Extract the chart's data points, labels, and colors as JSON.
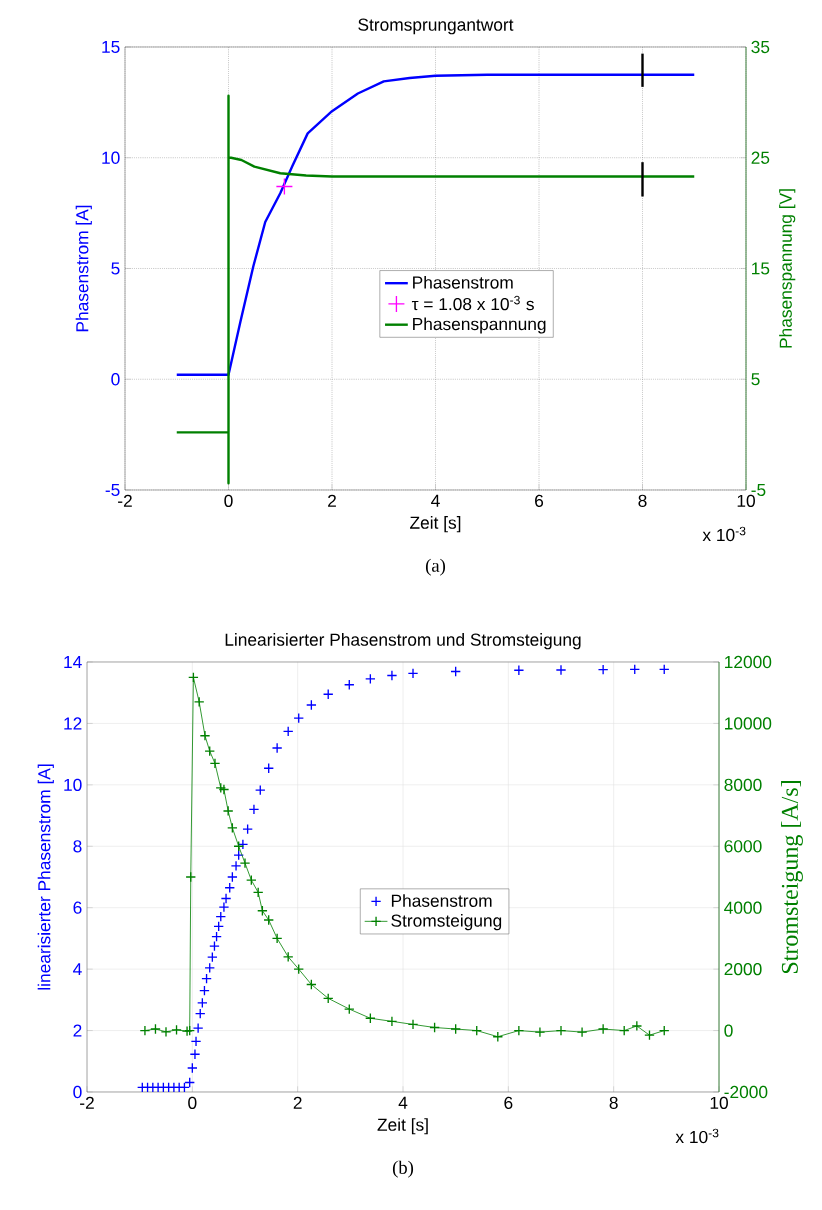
{
  "chart_data": [
    {
      "type": "line",
      "title": "Stromsprungantwort",
      "xlabel": "Zeit [s]",
      "ylabel": "Phasenstrom [A]",
      "y2label": "Phasenspannung [V]",
      "annotations": [
        "x 10$^{-3}$",
        "(a)"
      ],
      "xlim": [
        -2,
        10
      ],
      "xticks": [
        -2,
        0,
        2,
        4,
        6,
        8,
        10
      ],
      "ylim": [
        -5,
        15
      ],
      "yticks": [
        -5,
        0,
        5,
        10,
        15
      ],
      "y2lim": [
        -5,
        35
      ],
      "y2ticks": [
        -5,
        5,
        15,
        25,
        35
      ],
      "grid": true,
      "legend": "center",
      "marker": "none",
      "series": [
        {
          "name": "Phasenstrom",
          "color": "#0000ff",
          "x": [
            -1,
            -0.5,
            0,
            0.23,
            0.48,
            0.71,
            1.0,
            1.23,
            1.53,
            2.0,
            2.5,
            3.0,
            3.5,
            4.0,
            5.0,
            6.0,
            7.0,
            8.0,
            9.0
          ],
          "values": [
            0.2,
            0.2,
            0.2,
            2.6,
            5.1,
            7.1,
            8.4,
            9.6,
            11.1,
            12.1,
            12.9,
            13.45,
            13.6,
            13.7,
            13.75,
            13.75,
            13.75,
            13.75,
            13.75
          ]
        },
        {
          "name": "τ = 1.08 x 10$^{-3}$ s",
          "type": "scatter",
          "marker": "cross",
          "color": "#ff00ff",
          "x": [
            1.08
          ],
          "values": [
            8.7
          ]
        },
        {
          "name": "Phasenspannung",
          "axis": "y2",
          "color": "#008000",
          "x": [
            -1,
            -0.5,
            0,
            0,
            0,
            0,
            0.05,
            0.25,
            0.5,
            1.0,
            1.5,
            2,
            3,
            5,
            7,
            9
          ],
          "values": [
            0.2,
            0.2,
            0.2,
            30.6,
            -4.4,
            25,
            25,
            24.8,
            24.2,
            23.6,
            23.4,
            23.3,
            23.3,
            23.3,
            23.3,
            23.3
          ]
        },
        {
          "color": "#000000",
          "x": [
            8,
            8
          ],
          "values": [
            13.2,
            14.7
          ]
        },
        {
          "color": "#000000",
          "axis": "y2",
          "x": [
            8,
            8
          ],
          "values": [
            21.5,
            24.6
          ]
        }
      ]
    },
    {
      "type": "line",
      "title": "Linearisierter Phasenstrom und Stromsteigung",
      "xlabel": "Zeit [s]",
      "ylabel": "linearisierter Phasenstrom [A]",
      "y2label": "Stromsteigung [A/s]",
      "annotations": [
        "x 10$^{-3}$",
        "(b)"
      ],
      "xlim": [
        -2,
        10
      ],
      "xticks": [
        -2,
        0,
        2,
        4,
        6,
        8,
        10
      ],
      "ylim": [
        0,
        14
      ],
      "yticks": [
        0,
        2,
        4,
        6,
        8,
        10,
        12,
        14
      ],
      "y2lim": [
        -2000,
        12000
      ],
      "y2ticks": [
        -2000,
        0,
        2000,
        4000,
        6000,
        8000,
        10000,
        12000
      ],
      "grid": true,
      "legend": "center",
      "series": [
        {
          "name": "Phasenstrom",
          "type": "scatter",
          "marker": "cross",
          "color": "#0000ff",
          "x": [
            -0.95,
            -0.85,
            -0.75,
            -0.65,
            -0.55,
            -0.45,
            -0.35,
            -0.25,
            -0.15,
            -0.05,
            0,
            0.05,
            0.07,
            0.11,
            0.15,
            0.19,
            0.23,
            0.27,
            0.33,
            0.38,
            0.42,
            0.46,
            0.5,
            0.54,
            0.6,
            0.64,
            0.71,
            0.76,
            0.83,
            0.88,
            0.96,
            1.05,
            1.17,
            1.29,
            1.45,
            1.61,
            1.82,
            2.02,
            2.26,
            2.58,
            2.98,
            3.38,
            3.79,
            4.19,
            5.0,
            6.2,
            7.0,
            7.8,
            8.4,
            8.96
          ],
          "values": [
            0.15,
            0.15,
            0.15,
            0.15,
            0.15,
            0.15,
            0.15,
            0.15,
            0.15,
            0.31,
            0.78,
            1.23,
            1.65,
            2.08,
            2.55,
            2.9,
            3.3,
            3.69,
            4.04,
            4.39,
            4.75,
            5.06,
            5.39,
            5.71,
            6.02,
            6.3,
            6.65,
            7.0,
            7.36,
            7.71,
            8.06,
            8.56,
            9.2,
            9.83,
            10.54,
            11.2,
            11.74,
            12.17,
            12.6,
            12.95,
            13.26,
            13.45,
            13.56,
            13.63,
            13.69,
            13.73,
            13.74,
            13.75,
            13.76,
            13.76
          ]
        },
        {
          "name": "Stromsteigung",
          "type": "line",
          "marker": "cross",
          "axis": "y2",
          "color": "#008000",
          "x": [
            -0.9,
            -0.7,
            -0.5,
            -0.3,
            -0.1,
            -0.05,
            -0.03,
            0.02,
            0.13,
            0.24,
            0.33,
            0.43,
            0.54,
            0.6,
            0.68,
            0.76,
            0.88,
            1.0,
            1.12,
            1.25,
            1.33,
            1.45,
            1.61,
            1.82,
            2.02,
            2.26,
            2.58,
            2.98,
            3.38,
            3.79,
            4.19,
            4.6,
            5.0,
            5.4,
            5.8,
            6.2,
            6.6,
            7.0,
            7.4,
            7.8,
            8.2,
            8.44,
            8.68,
            8.96
          ],
          "values": [
            0,
            50,
            -40,
            20,
            -20,
            0,
            5000,
            11500,
            10700,
            9600,
            9100,
            8700,
            7900,
            7850,
            7150,
            6600,
            6000,
            5450,
            4900,
            4500,
            3900,
            3600,
            3000,
            2400,
            2000,
            1500,
            1050,
            700,
            400,
            300,
            200,
            100,
            50,
            0,
            -200,
            0,
            -50,
            0,
            -50,
            50,
            0,
            150,
            -150,
            0
          ]
        }
      ]
    }
  ]
}
